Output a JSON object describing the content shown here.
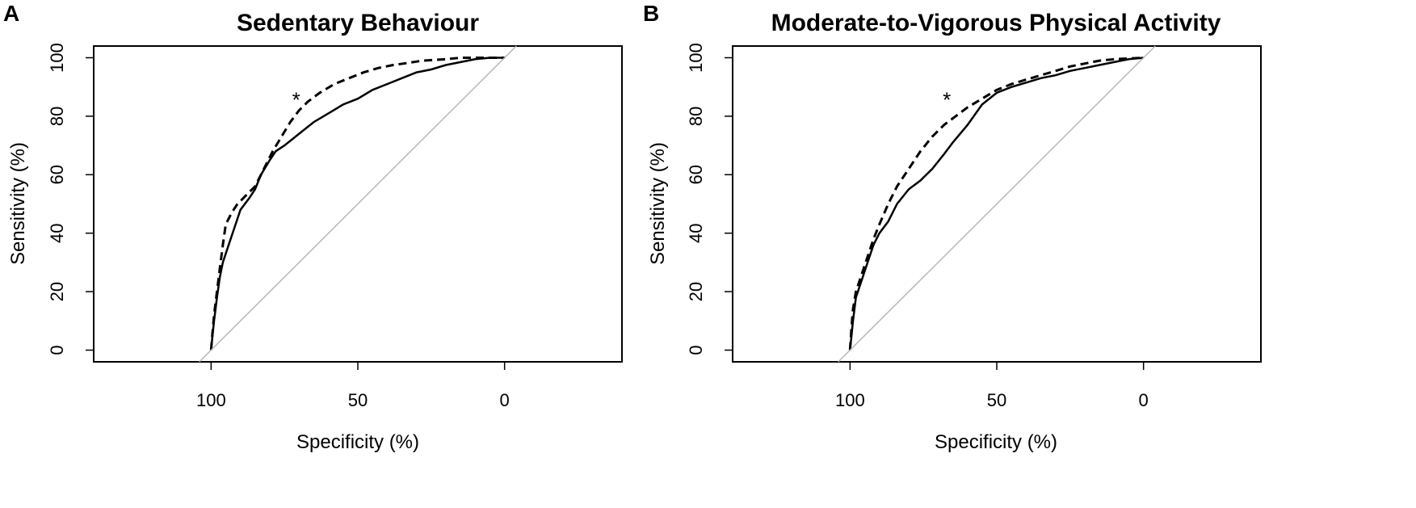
{
  "chart_data": [
    {
      "type": "line",
      "panel_label": "A",
      "title": "Sedentary Behaviour",
      "xlabel": "Specificity (%)",
      "ylabel": "Sensitivity (%)",
      "x_reversed": true,
      "xlim": [
        140,
        -40
      ],
      "ylim": [
        -4,
        104
      ],
      "xticks": [
        100,
        50,
        0
      ],
      "xtick_labels": [
        "100",
        "50",
        "0"
      ],
      "yticks": [
        0,
        20,
        40,
        60,
        80,
        100
      ],
      "ytick_labels": [
        "0",
        "20",
        "40",
        "60",
        "80",
        "100"
      ],
      "annotation": "*",
      "annotation_pos": [
        71,
        87
      ],
      "series": [
        {
          "name": "solid",
          "style": "solid",
          "points": [
            [
              100,
              0
            ],
            [
              99.5,
              5
            ],
            [
              99,
              10
            ],
            [
              98,
              18
            ],
            [
              97,
              25
            ],
            [
              96,
              30
            ],
            [
              94,
              36
            ],
            [
              92,
              42
            ],
            [
              90,
              48
            ],
            [
              87,
              52
            ],
            [
              85,
              55
            ],
            [
              83,
              60
            ],
            [
              80,
              65
            ],
            [
              78,
              68
            ],
            [
              75,
              70
            ],
            [
              70,
              74
            ],
            [
              65,
              78
            ],
            [
              60,
              81
            ],
            [
              55,
              84
            ],
            [
              50,
              86
            ],
            [
              45,
              89
            ],
            [
              40,
              91
            ],
            [
              35,
              93
            ],
            [
              30,
              95
            ],
            [
              25,
              96
            ],
            [
              20,
              97.5
            ],
            [
              15,
              98.5
            ],
            [
              10,
              99.5
            ],
            [
              5,
              100
            ],
            [
              0,
              100
            ]
          ]
        },
        {
          "name": "dashed",
          "style": "dashed",
          "points": [
            [
              100,
              0
            ],
            [
              99.5,
              6
            ],
            [
              99,
              12
            ],
            [
              98,
              20
            ],
            [
              97,
              28
            ],
            [
              96,
              36
            ],
            [
              95,
              43
            ],
            [
              93,
              47
            ],
            [
              91,
              50
            ],
            [
              88,
              53
            ],
            [
              85,
              56
            ],
            [
              82,
              62
            ],
            [
              79,
              68
            ],
            [
              76,
              73
            ],
            [
              73,
              78
            ],
            [
              70,
              82
            ],
            [
              67,
              85
            ],
            [
              63,
              88
            ],
            [
              58,
              91
            ],
            [
              53,
              93
            ],
            [
              48,
              95
            ],
            [
              43,
              96.5
            ],
            [
              38,
              97.5
            ],
            [
              33,
              98.2
            ],
            [
              28,
              99
            ],
            [
              20,
              99.5
            ],
            [
              15,
              100
            ],
            [
              5,
              100
            ],
            [
              0,
              100
            ]
          ]
        },
        {
          "name": "diagonal",
          "style": "reference",
          "points": [
            [
              104,
              -4
            ],
            [
              -4,
              104
            ]
          ]
        }
      ]
    },
    {
      "type": "line",
      "panel_label": "B",
      "title": "Moderate-to-Vigorous Physical Activity",
      "xlabel": "Specificity (%)",
      "ylabel": "Sensitivity (%)",
      "x_reversed": true,
      "xlim": [
        140,
        -40
      ],
      "ylim": [
        -4,
        104
      ],
      "xticks": [
        100,
        50,
        0
      ],
      "xtick_labels": [
        "100",
        "50",
        "0"
      ],
      "yticks": [
        0,
        20,
        40,
        60,
        80,
        100
      ],
      "ytick_labels": [
        "0",
        "20",
        "40",
        "60",
        "80",
        "100"
      ],
      "annotation": "*",
      "annotation_pos": [
        67,
        87
      ],
      "series": [
        {
          "name": "solid",
          "style": "solid",
          "points": [
            [
              100,
              0
            ],
            [
              99.5,
              5
            ],
            [
              99,
              10
            ],
            [
              98,
              18
            ],
            [
              96,
              24
            ],
            [
              94,
              30
            ],
            [
              92,
              36
            ],
            [
              90,
              40
            ],
            [
              87,
              44
            ],
            [
              84,
              50
            ],
            [
              80,
              55
            ],
            [
              76,
              58
            ],
            [
              72,
              62
            ],
            [
              68,
              67
            ],
            [
              65,
              71
            ],
            [
              60,
              77
            ],
            [
              55,
              84
            ],
            [
              50,
              88
            ],
            [
              45,
              90
            ],
            [
              40,
              91.5
            ],
            [
              35,
              93
            ],
            [
              30,
              94
            ],
            [
              25,
              95.5
            ],
            [
              20,
              96.5
            ],
            [
              15,
              97.5
            ],
            [
              10,
              98.5
            ],
            [
              5,
              99.5
            ],
            [
              0,
              100
            ]
          ]
        },
        {
          "name": "dashed",
          "style": "dashed",
          "points": [
            [
              100,
              0
            ],
            [
              99.5,
              8
            ],
            [
              99,
              14
            ],
            [
              98,
              20
            ],
            [
              96,
              26
            ],
            [
              94,
              32
            ],
            [
              92,
              38
            ],
            [
              90,
              43
            ],
            [
              87,
              50
            ],
            [
              84,
              56
            ],
            [
              80,
              62
            ],
            [
              76,
              68
            ],
            [
              72,
              73
            ],
            [
              68,
              77
            ],
            [
              64,
              80
            ],
            [
              60,
              83
            ],
            [
              55,
              86
            ],
            [
              50,
              89
            ],
            [
              45,
              91
            ],
            [
              40,
              92.5
            ],
            [
              35,
              94
            ],
            [
              30,
              95.5
            ],
            [
              25,
              97
            ],
            [
              20,
              98
            ],
            [
              15,
              99
            ],
            [
              10,
              99.5
            ],
            [
              0,
              100
            ]
          ]
        },
        {
          "name": "diagonal",
          "style": "reference",
          "points": [
            [
              104,
              -4
            ],
            [
              -4,
              104
            ]
          ]
        }
      ]
    }
  ]
}
